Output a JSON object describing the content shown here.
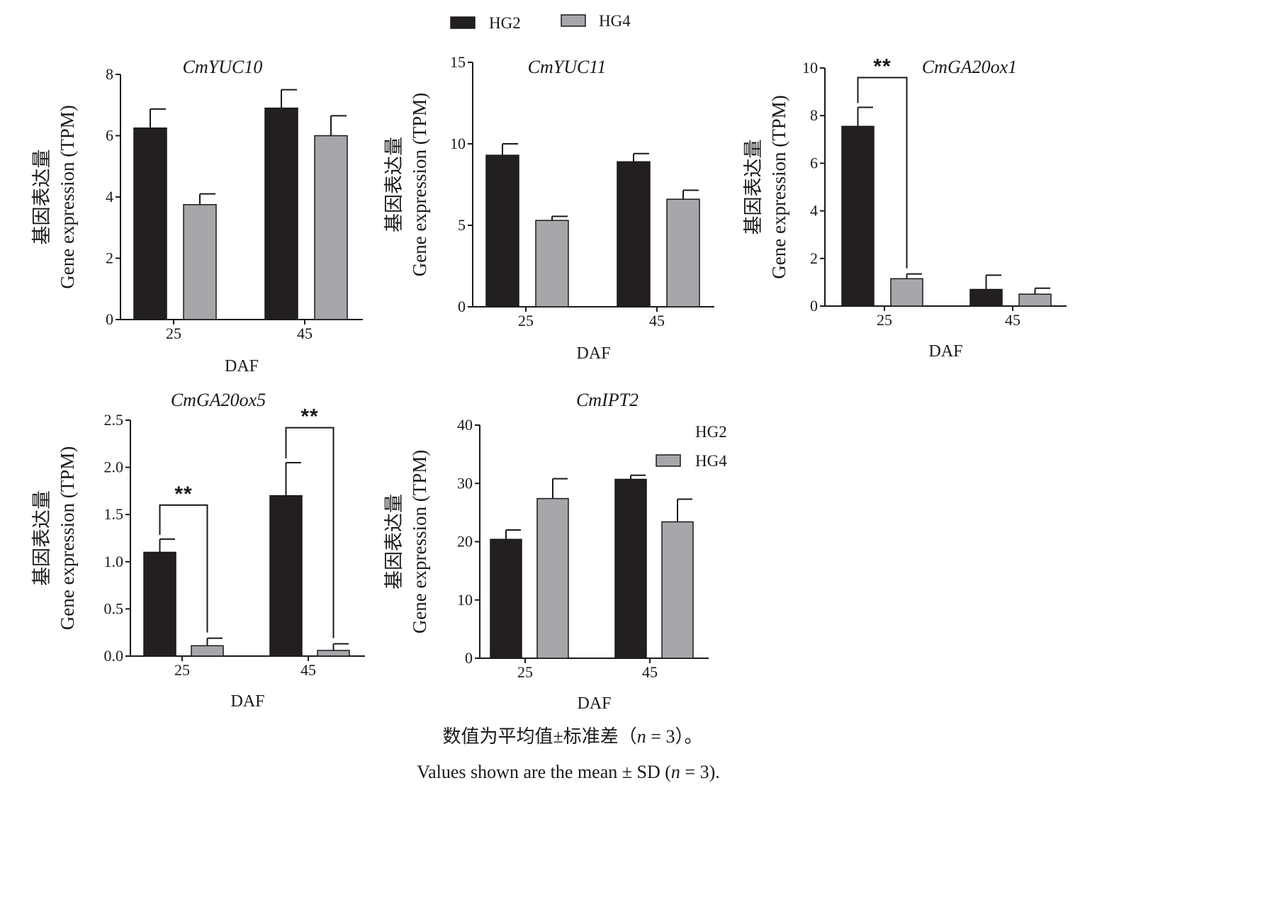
{
  "legend": {
    "items": [
      {
        "name": "HG2",
        "color": "#231f20"
      },
      {
        "name": "HG4",
        "color": "#a7a6aa"
      }
    ]
  },
  "inner_legend": {
    "items": [
      {
        "name": "HG2",
        "swatch": false
      },
      {
        "name": "HG4",
        "swatch": true
      }
    ]
  },
  "colors": {
    "HG2": "#231f20",
    "HG4": "#a7a6aa",
    "axis": "#1a1a1a"
  },
  "notes": {
    "cn_prefix": "数值为平均值±标准差（",
    "n_var": "n",
    "eq": " = 3）。",
    "en_prefix": "Values shown are the mean ± SD (",
    "en_eq": " = 3)."
  },
  "chart_data": [
    {
      "type": "bar",
      "title": "CmYUC10",
      "xlabel": "DAF",
      "ylabel_cn": "基因表达量",
      "ylabel_en": "Gene expression (TPM)",
      "categories": [
        "25",
        "45"
      ],
      "ylim": [
        0,
        8
      ],
      "yticks": [
        "0",
        "2",
        "4",
        "6",
        "8"
      ],
      "series": [
        {
          "name": "HG2",
          "values": [
            6.25,
            6.9
          ],
          "errors": [
            0.62,
            0.6
          ]
        },
        {
          "name": "HG4",
          "values": [
            3.75,
            6.0
          ],
          "errors": [
            0.35,
            0.65
          ]
        }
      ],
      "significance": []
    },
    {
      "type": "bar",
      "title": "CmYUC11",
      "xlabel": "DAF",
      "ylabel_cn": "基因表达量",
      "ylabel_en": "Gene expression (TPM)",
      "categories": [
        "25",
        "45"
      ],
      "ylim": [
        0,
        15
      ],
      "yticks": [
        "0",
        "5",
        "10",
        "15"
      ],
      "series": [
        {
          "name": "HG2",
          "values": [
            9.3,
            8.9
          ],
          "errors": [
            0.7,
            0.5
          ]
        },
        {
          "name": "HG4",
          "values": [
            5.3,
            6.6
          ],
          "errors": [
            0.25,
            0.55
          ]
        }
      ],
      "significance": []
    },
    {
      "type": "bar",
      "title": "CmGA20ox1",
      "xlabel": "DAF",
      "ylabel_cn": "基因表达量",
      "ylabel_en": "Gene expression (TPM)",
      "categories": [
        "25",
        "45"
      ],
      "ylim": [
        0,
        10
      ],
      "yticks": [
        "0",
        "2",
        "4",
        "6",
        "8",
        "10"
      ],
      "series": [
        {
          "name": "HG2",
          "values": [
            7.55,
            0.7
          ],
          "errors": [
            0.8,
            0.6
          ]
        },
        {
          "name": "HG4",
          "values": [
            1.15,
            0.5
          ],
          "errors": [
            0.2,
            0.25
          ]
        }
      ],
      "significance": [
        {
          "category": 0,
          "label": "**",
          "level": 9.6
        }
      ]
    },
    {
      "type": "bar",
      "title": "CmGA20ox5",
      "xlabel": "DAF",
      "ylabel_cn": "基因表达量",
      "ylabel_en": "Gene expression (TPM)",
      "categories": [
        "25",
        "45"
      ],
      "ylim": [
        0,
        2.5
      ],
      "yticks": [
        "0.0",
        "0.5",
        "1.0",
        "1.5",
        "2.0",
        "2.5"
      ],
      "series": [
        {
          "name": "HG2",
          "values": [
            1.1,
            1.7
          ],
          "errors": [
            0.14,
            0.35
          ]
        },
        {
          "name": "HG4",
          "values": [
            0.11,
            0.06
          ],
          "errors": [
            0.08,
            0.07
          ]
        }
      ],
      "significance": [
        {
          "category": 0,
          "label": "**",
          "level": 1.6
        },
        {
          "category": 1,
          "label": "**",
          "level": 2.42
        }
      ]
    },
    {
      "type": "bar",
      "title": "CmIPT2",
      "xlabel": "DAF",
      "ylabel_cn": "基因表达量",
      "ylabel_en": "Gene expression (TPM)",
      "categories": [
        "25",
        "45"
      ],
      "ylim": [
        0,
        40
      ],
      "yticks": [
        "0",
        "10",
        "20",
        "30",
        "40"
      ],
      "series": [
        {
          "name": "HG2",
          "values": [
            20.4,
            30.7
          ],
          "errors": [
            1.6,
            0.7
          ]
        },
        {
          "name": "HG4",
          "values": [
            27.4,
            23.4
          ],
          "errors": [
            3.4,
            3.9
          ]
        }
      ],
      "significance": []
    }
  ]
}
